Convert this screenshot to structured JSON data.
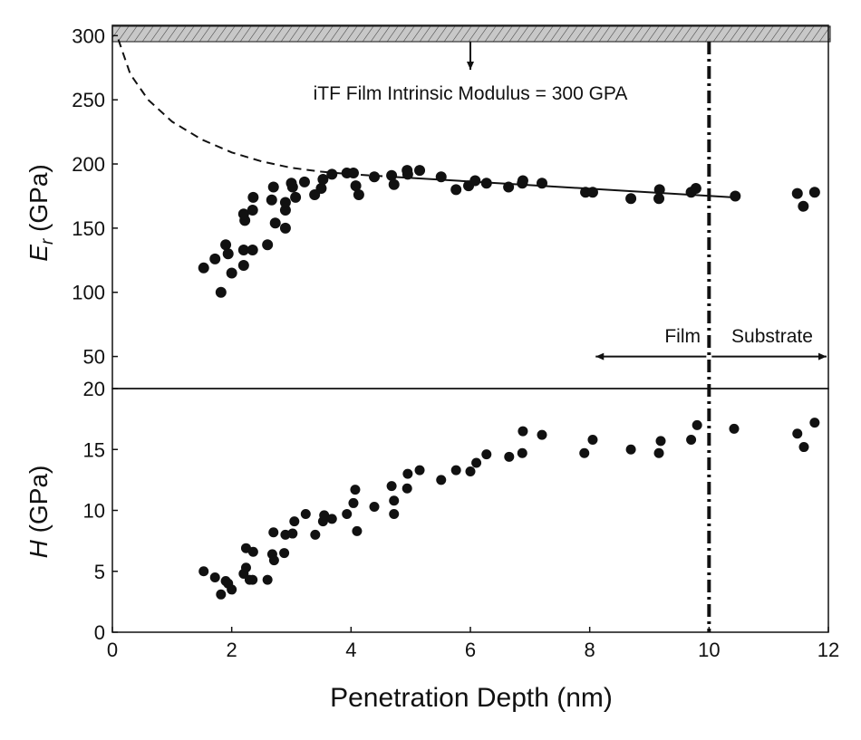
{
  "chart_data": [
    {
      "type": "scatter",
      "ylabel_main": "E",
      "ylabel_sub": "r",
      "ylabel_unit": " (GPa)",
      "xlim": [
        0,
        12
      ],
      "ylim": [
        25,
        308
      ],
      "yticks": [
        300,
        250,
        200,
        150,
        100,
        50
      ],
      "grid": false,
      "annotation": "iTF Film Intrinsic Modulus = 300 GPA",
      "annotation_arrow_x": 6,
      "intrinsic_modulus": 300,
      "region_labels": {
        "film": "Film",
        "substrate": "Substrate"
      },
      "region_arrow_y": 50,
      "region_arrow_x": [
        8.1,
        10,
        12
      ],
      "boundary_x": 10,
      "dashed_fit": [
        [
          0.1,
          297
        ],
        [
          0.3,
          270
        ],
        [
          0.6,
          250
        ],
        [
          1,
          233
        ],
        [
          1.5,
          219
        ],
        [
          2,
          209
        ],
        [
          2.5,
          202
        ],
        [
          3,
          197
        ],
        [
          3.5,
          194
        ],
        [
          4,
          192
        ],
        [
          4.7,
          190
        ]
      ],
      "solid_fit": [
        [
          4.7,
          190
        ],
        [
          10.4,
          174
        ]
      ],
      "points": [
        [
          1.53,
          119
        ],
        [
          1.72,
          126
        ],
        [
          1.9,
          137
        ],
        [
          1.94,
          130
        ],
        [
          1.82,
          100
        ],
        [
          2.0,
          115
        ],
        [
          2.2,
          121
        ],
        [
          2.2,
          133
        ],
        [
          2.22,
          156
        ],
        [
          2.2,
          161
        ],
        [
          2.35,
          133
        ],
        [
          2.35,
          164
        ],
        [
          2.36,
          174
        ],
        [
          2.6,
          137
        ],
        [
          2.67,
          172
        ],
        [
          2.7,
          182
        ],
        [
          2.73,
          154
        ],
        [
          2.9,
          150
        ],
        [
          2.9,
          164
        ],
        [
          2.9,
          170
        ],
        [
          3.0,
          185
        ],
        [
          3.02,
          182
        ],
        [
          3.07,
          174
        ],
        [
          3.22,
          186
        ],
        [
          3.39,
          176
        ],
        [
          3.5,
          181
        ],
        [
          3.53,
          188
        ],
        [
          3.68,
          192
        ],
        [
          3.93,
          193
        ],
        [
          4.04,
          193
        ],
        [
          4.08,
          183
        ],
        [
          4.13,
          176
        ],
        [
          4.39,
          190
        ],
        [
          4.68,
          191
        ],
        [
          4.72,
          184
        ],
        [
          4.94,
          195
        ],
        [
          4.95,
          192
        ],
        [
          5.15,
          195
        ],
        [
          5.51,
          190
        ],
        [
          5.76,
          180
        ],
        [
          5.97,
          183
        ],
        [
          6.08,
          187
        ],
        [
          6.27,
          185
        ],
        [
          6.64,
          182
        ],
        [
          6.87,
          185
        ],
        [
          6.88,
          187
        ],
        [
          7.2,
          185
        ],
        [
          7.93,
          178
        ],
        [
          8.05,
          178
        ],
        [
          8.69,
          173
        ],
        [
          9.16,
          173
        ],
        [
          9.17,
          180
        ],
        [
          9.7,
          178
        ],
        [
          9.78,
          181
        ],
        [
          10.44,
          175
        ],
        [
          11.48,
          177
        ],
        [
          11.58,
          167
        ],
        [
          11.77,
          178
        ]
      ]
    },
    {
      "type": "scatter",
      "ylabel_main": "H",
      "ylabel_unit": " (GPa)",
      "xlabel": "Penetration Depth (nm)",
      "xlim": [
        0,
        12
      ],
      "ylim": [
        0,
        20
      ],
      "xticks": [
        0,
        2,
        4,
        6,
        8,
        10,
        12
      ],
      "yticks": [
        20,
        15,
        10,
        5,
        0
      ],
      "grid": false,
      "boundary_x": 10,
      "points": [
        [
          1.53,
          5.0
        ],
        [
          1.72,
          4.5
        ],
        [
          1.9,
          4.2
        ],
        [
          1.94,
          4.0
        ],
        [
          1.82,
          3.1
        ],
        [
          2.0,
          3.5
        ],
        [
          2.2,
          4.8
        ],
        [
          2.24,
          5.3
        ],
        [
          2.24,
          6.9
        ],
        [
          2.36,
          6.6
        ],
        [
          2.3,
          4.3
        ],
        [
          2.35,
          4.3
        ],
        [
          2.6,
          4.3
        ],
        [
          2.68,
          6.4
        ],
        [
          2.71,
          5.9
        ],
        [
          2.7,
          8.2
        ],
        [
          2.88,
          6.5
        ],
        [
          2.9,
          8.0
        ],
        [
          3.02,
          8.1
        ],
        [
          3.05,
          9.1
        ],
        [
          3.24,
          9.7
        ],
        [
          3.4,
          8.0
        ],
        [
          3.53,
          9.1
        ],
        [
          3.55,
          9.6
        ],
        [
          3.68,
          9.3
        ],
        [
          3.93,
          9.7
        ],
        [
          4.04,
          10.6
        ],
        [
          4.07,
          11.7
        ],
        [
          4.1,
          8.3
        ],
        [
          4.39,
          10.3
        ],
        [
          4.68,
          12.0
        ],
        [
          4.72,
          10.8
        ],
        [
          4.72,
          9.7
        ],
        [
          4.94,
          11.8
        ],
        [
          4.95,
          13.0
        ],
        [
          5.15,
          13.3
        ],
        [
          5.51,
          12.5
        ],
        [
          5.76,
          13.3
        ],
        [
          6.0,
          13.2
        ],
        [
          6.1,
          13.9
        ],
        [
          6.27,
          14.6
        ],
        [
          6.65,
          14.4
        ],
        [
          6.87,
          14.7
        ],
        [
          6.88,
          16.5
        ],
        [
          7.2,
          16.2
        ],
        [
          7.91,
          14.7
        ],
        [
          8.05,
          15.8
        ],
        [
          8.69,
          15.0
        ],
        [
          9.16,
          14.7
        ],
        [
          9.19,
          15.7
        ],
        [
          9.7,
          15.8
        ],
        [
          9.8,
          17.0
        ],
        [
          10.42,
          16.7
        ],
        [
          11.48,
          16.3
        ],
        [
          11.59,
          15.2
        ],
        [
          11.77,
          17.2
        ]
      ]
    }
  ]
}
